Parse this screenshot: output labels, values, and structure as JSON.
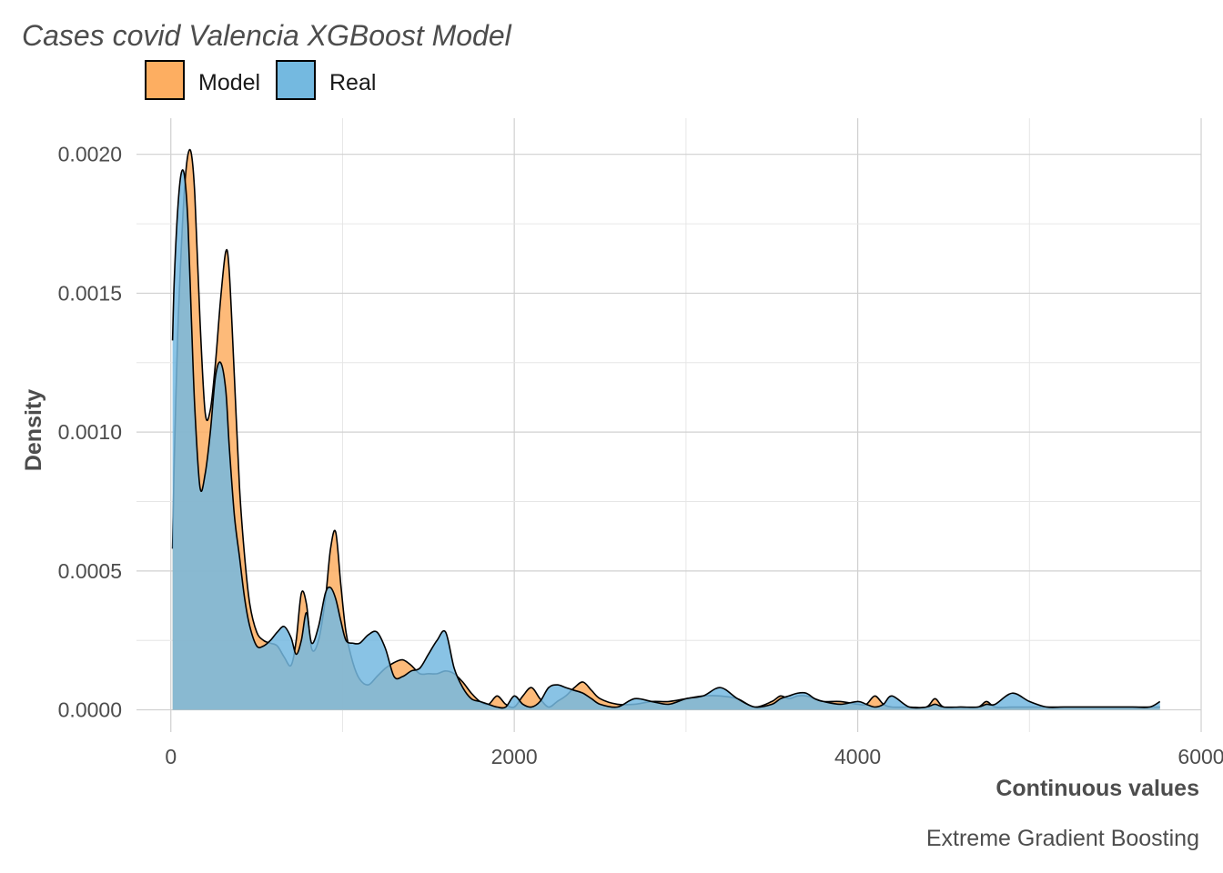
{
  "chart_data": {
    "type": "area",
    "title": "Cases covid Valencia XGBoost Model",
    "xlabel": "Continuous values",
    "ylabel": "Density",
    "caption": "Extreme Gradient Boosting",
    "xlim": [
      -200,
      6000
    ],
    "ylim": [
      -8e-05,
      0.00213
    ],
    "x_ticks": [
      0,
      2000,
      4000,
      6000
    ],
    "x_tick_labels": [
      "0",
      "2000",
      "4000",
      "6000"
    ],
    "y_ticks": [
      0,
      0.0005,
      0.001,
      0.0015,
      0.002
    ],
    "y_tick_labels": [
      "0.0000",
      "0.0005",
      "0.0010",
      "0.0015",
      "0.0020"
    ],
    "grid": true,
    "legend": {
      "position": "top-left",
      "entries": [
        {
          "label": "Model",
          "color": "#fdae61"
        },
        {
          "label": "Real",
          "color": "#74b9e0"
        }
      ]
    },
    "series": [
      {
        "name": "Model",
        "color": "#fdae61",
        "x": [
          10,
          20,
          40,
          60,
          80,
          100,
          120,
          140,
          170,
          200,
          230,
          260,
          290,
          320,
          340,
          370,
          400,
          430,
          460,
          500,
          540,
          580,
          620,
          660,
          700,
          730,
          760,
          790,
          820,
          860,
          900,
          930,
          960,
          990,
          1020,
          1060,
          1100,
          1150,
          1200,
          1250,
          1300,
          1350,
          1400,
          1450,
          1500,
          1550,
          1600,
          1650,
          1700,
          1750,
          1800,
          1850,
          1900,
          1950,
          2000,
          2050,
          2100,
          2150,
          2200,
          2250,
          2300,
          2350,
          2400,
          2450,
          2500,
          2600,
          2700,
          2800,
          2900,
          3000,
          3100,
          3200,
          3300,
          3400,
          3500,
          3550,
          3600,
          3650,
          3700,
          3750,
          3800,
          3900,
          4000,
          4050,
          4100,
          4150,
          4200,
          4300,
          4400,
          4450,
          4500,
          4600,
          4700,
          4750,
          4800,
          4900,
          5000,
          5100,
          5200,
          5300,
          5400,
          5500,
          5600,
          5700,
          5760
        ],
        "values": [
          0.00058,
          0.0009,
          0.00135,
          0.00165,
          0.00188,
          0.002,
          0.002,
          0.00185,
          0.0014,
          0.00107,
          0.00108,
          0.00125,
          0.00148,
          0.00165,
          0.00158,
          0.0012,
          0.0008,
          0.00055,
          0.00038,
          0.00028,
          0.00025,
          0.00024,
          0.00023,
          0.00019,
          0.00016,
          0.00025,
          0.00042,
          0.00038,
          0.00022,
          0.00025,
          0.0004,
          0.00058,
          0.00064,
          0.00045,
          0.00028,
          0.00017,
          0.00011,
          9e-05,
          0.00012,
          0.00015,
          0.00017,
          0.00018,
          0.00016,
          0.00013,
          0.00013,
          0.00013,
          0.00014,
          0.00013,
          0.0001,
          6e-05,
          3e-05,
          2e-05,
          5e-05,
          2e-05,
          1e-05,
          5e-05,
          8e-05,
          4e-05,
          1e-05,
          3e-05,
          5e-05,
          8e-05,
          0.0001,
          7e-05,
          4e-05,
          2e-05,
          2e-05,
          3e-05,
          3e-05,
          4e-05,
          5e-05,
          5e-05,
          4e-05,
          1e-05,
          3e-05,
          5e-05,
          4e-05,
          5e-05,
          5e-05,
          4e-05,
          3e-05,
          3e-05,
          2e-05,
          2e-05,
          5e-05,
          2e-05,
          1e-05,
          1e-05,
          1e-05,
          4e-05,
          1e-05,
          1e-05,
          1e-05,
          3e-05,
          1e-05,
          1e-05,
          1e-05,
          1e-05,
          1e-05,
          1e-05,
          1e-05,
          1e-05,
          1e-05,
          1e-05,
          1e-05
        ]
      },
      {
        "name": "Real",
        "color": "#74b9e0",
        "x": [
          10,
          20,
          40,
          60,
          80,
          100,
          120,
          140,
          170,
          200,
          230,
          260,
          290,
          320,
          340,
          370,
          400,
          430,
          460,
          500,
          540,
          580,
          620,
          660,
          700,
          730,
          760,
          790,
          820,
          860,
          900,
          930,
          960,
          990,
          1020,
          1060,
          1100,
          1150,
          1200,
          1250,
          1300,
          1350,
          1400,
          1450,
          1500,
          1550,
          1600,
          1650,
          1700,
          1750,
          1800,
          1850,
          1900,
          1950,
          2000,
          2050,
          2100,
          2150,
          2200,
          2250,
          2300,
          2350,
          2400,
          2450,
          2500,
          2600,
          2700,
          2800,
          2900,
          3000,
          3100,
          3200,
          3300,
          3400,
          3500,
          3550,
          3600,
          3650,
          3700,
          3750,
          3800,
          3900,
          4000,
          4050,
          4100,
          4150,
          4200,
          4300,
          4400,
          4450,
          4500,
          4600,
          4700,
          4750,
          4800,
          4900,
          5000,
          5100,
          5200,
          5300,
          5400,
          5500,
          5600,
          5700,
          5760
        ],
        "values": [
          0.00133,
          0.00155,
          0.0018,
          0.00193,
          0.00192,
          0.00175,
          0.0014,
          0.00108,
          0.0008,
          0.00085,
          0.001,
          0.0012,
          0.00125,
          0.00115,
          0.00095,
          0.0007,
          0.00055,
          0.0004,
          0.0003,
          0.00023,
          0.00023,
          0.00025,
          0.00028,
          0.0003,
          0.00026,
          0.0002,
          0.00025,
          0.00035,
          0.00024,
          0.0003,
          0.00042,
          0.00044,
          0.0004,
          0.00032,
          0.00025,
          0.00024,
          0.00024,
          0.00027,
          0.00028,
          0.00022,
          0.00012,
          0.00012,
          0.00014,
          0.00015,
          0.0002,
          0.00025,
          0.00028,
          0.00015,
          8e-05,
          4e-05,
          3e-05,
          2e-05,
          1e-05,
          1e-05,
          5e-05,
          2e-05,
          1e-05,
          3e-05,
          8e-05,
          9e-05,
          8e-05,
          7e-05,
          6e-05,
          4e-05,
          2e-05,
          1e-05,
          4e-05,
          3e-05,
          2e-05,
          4e-05,
          5e-05,
          8e-05,
          4e-05,
          1e-05,
          2e-05,
          4e-05,
          5e-05,
          6e-05,
          6e-05,
          4e-05,
          3e-05,
          2e-05,
          3e-05,
          2e-05,
          1e-05,
          2e-05,
          5e-05,
          1e-05,
          1e-05,
          2e-05,
          1e-05,
          1e-05,
          1e-05,
          2e-05,
          2e-05,
          6e-05,
          3e-05,
          1e-05,
          1e-05,
          1e-05,
          1e-05,
          1e-05,
          1e-05,
          1e-05,
          3e-05
        ]
      }
    ]
  }
}
